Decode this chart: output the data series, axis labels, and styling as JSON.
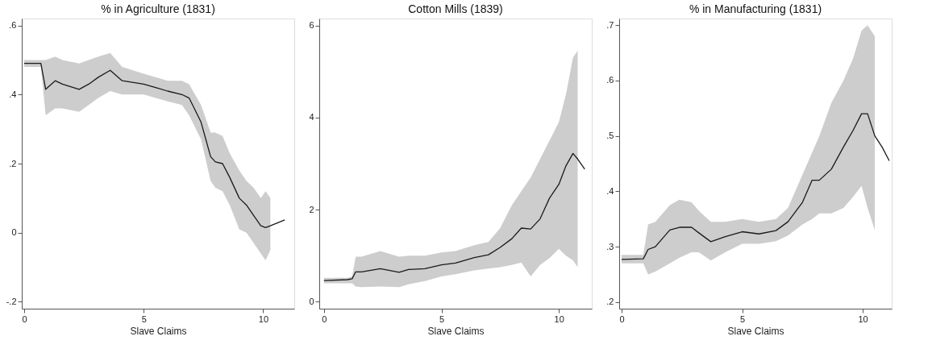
{
  "chart_data": [
    {
      "type": "line",
      "title": "% in Agriculture (1831)",
      "xlabel": "Slave Claims",
      "xlim": [
        -0.1,
        11.3
      ],
      "xticks": [
        0,
        5,
        10
      ],
      "ylim": [
        -0.22,
        0.62
      ],
      "yticks": [
        {
          "value": -0.2,
          "label": "-.2"
        },
        {
          "value": 0,
          "label": "0"
        },
        {
          "value": 0.2,
          "label": ".2"
        },
        {
          "value": 0.4,
          "label": ".4"
        },
        {
          "value": 0.6,
          "label": ".6"
        }
      ],
      "grid": false,
      "x": [
        0,
        0.7,
        0.9,
        1.3,
        1.6,
        2.3,
        2.7,
        3.1,
        3.6,
        4.1,
        5.0,
        5.5,
        6.0,
        6.6,
        6.9,
        7.4,
        7.8,
        8.0,
        8.3,
        8.6,
        9.0,
        9.3,
        9.6,
        9.9,
        10.1,
        10.3,
        10.9
      ],
      "series": [
        {
          "color": "#1a1a1a",
          "values": [
            0.49,
            0.49,
            0.415,
            0.44,
            0.43,
            0.415,
            0.43,
            0.45,
            0.47,
            0.44,
            0.43,
            0.42,
            0.41,
            0.4,
            0.39,
            0.32,
            0.22,
            0.205,
            0.2,
            0.16,
            0.1,
            0.08,
            0.05,
            0.02,
            0.015,
            0.02,
            0.037
          ],
          "lower": [
            0.48,
            0.48,
            0.34,
            0.36,
            0.36,
            0.35,
            0.37,
            0.39,
            0.41,
            0.4,
            0.4,
            0.39,
            0.38,
            0.37,
            0.34,
            0.27,
            0.15,
            0.13,
            0.12,
            0.08,
            0.01,
            0.0,
            -0.03,
            -0.06,
            -0.08,
            -0.05,
            null
          ],
          "upper": [
            0.5,
            0.5,
            0.5,
            0.51,
            0.5,
            0.49,
            0.5,
            0.51,
            0.52,
            0.48,
            0.46,
            0.45,
            0.44,
            0.44,
            0.43,
            0.37,
            0.29,
            0.29,
            0.28,
            0.23,
            0.18,
            0.15,
            0.13,
            0.1,
            0.12,
            0.1,
            null
          ]
        }
      ]
    },
    {
      "type": "line",
      "title": "Cotton Mills (1839)",
      "xlabel": "Slave Claims",
      "xlim": [
        -0.2,
        11.4
      ],
      "xticks": [
        0,
        5,
        10
      ],
      "ylim": [
        -0.15,
        6.15
      ],
      "yticks": [
        0,
        2,
        4,
        6
      ],
      "grid": false,
      "x": [
        0,
        1.0,
        1.2,
        1.35,
        1.6,
        2.4,
        3.2,
        3.6,
        4.3,
        5.0,
        5.6,
        6.4,
        7.0,
        7.5,
        8.0,
        8.4,
        8.8,
        9.2,
        9.6,
        10.0,
        10.3,
        10.6,
        10.8,
        11.1
      ],
      "series": [
        {
          "color": "#1a1a1a",
          "values": [
            0.46,
            0.48,
            0.5,
            0.65,
            0.65,
            0.72,
            0.64,
            0.7,
            0.72,
            0.8,
            0.84,
            0.96,
            1.02,
            1.18,
            1.37,
            1.6,
            1.58,
            1.8,
            2.25,
            2.55,
            2.95,
            3.22,
            3.1,
            2.88
          ],
          "lower": [
            0.4,
            0.4,
            0.4,
            0.33,
            0.32,
            0.33,
            0.32,
            0.38,
            0.45,
            0.55,
            0.6,
            0.68,
            0.72,
            0.75,
            0.8,
            0.85,
            0.55,
            0.8,
            0.95,
            1.15,
            1.0,
            0.9,
            0.75,
            null
          ],
          "upper": [
            0.52,
            0.52,
            0.55,
            0.98,
            0.98,
            1.1,
            0.98,
            1.0,
            1.0,
            1.07,
            1.1,
            1.23,
            1.3,
            1.6,
            2.1,
            2.4,
            2.7,
            3.1,
            3.5,
            3.9,
            4.5,
            5.3,
            5.45,
            null
          ]
        }
      ]
    },
    {
      "type": "line",
      "title": "% in Manufacturing (1831)",
      "xlabel": "Slave Claims",
      "xlim": [
        -0.1,
        11.2
      ],
      "xticks": [
        0,
        5,
        10
      ],
      "ylim": [
        0.188,
        0.712
      ],
      "yticks": [
        {
          "value": 0.2,
          "label": ".2"
        },
        {
          "value": 0.3,
          "label": ".3"
        },
        {
          "value": 0.4,
          "label": ".4"
        },
        {
          "value": 0.5,
          "label": ".5"
        },
        {
          "value": 0.6,
          "label": ".6"
        },
        {
          "value": 0.7,
          "label": ".7"
        }
      ],
      "grid": false,
      "x": [
        0,
        0.9,
        1.1,
        1.4,
        2.0,
        2.4,
        2.9,
        3.2,
        3.7,
        4.3,
        5.0,
        5.7,
        6.4,
        6.9,
        7.5,
        7.9,
        8.2,
        8.7,
        9.2,
        9.6,
        9.95,
        10.2,
        10.5,
        10.8,
        11.1
      ],
      "series": [
        {
          "color": "#1a1a1a",
          "values": [
            0.277,
            0.278,
            0.295,
            0.3,
            0.33,
            0.335,
            0.335,
            0.325,
            0.309,
            0.318,
            0.327,
            0.323,
            0.329,
            0.345,
            0.38,
            0.42,
            0.42,
            0.44,
            0.48,
            0.51,
            0.54,
            0.54,
            0.5,
            0.48,
            0.455
          ],
          "lower": [
            0.27,
            0.27,
            0.25,
            0.255,
            0.27,
            0.28,
            0.29,
            0.29,
            0.275,
            0.29,
            0.305,
            0.305,
            0.31,
            0.32,
            0.34,
            0.35,
            0.36,
            0.36,
            0.37,
            0.39,
            0.41,
            0.37,
            0.33,
            null,
            null
          ],
          "upper": [
            0.285,
            0.285,
            0.34,
            0.345,
            0.375,
            0.385,
            0.38,
            0.365,
            0.345,
            0.345,
            0.35,
            0.345,
            0.35,
            0.37,
            0.43,
            0.47,
            0.5,
            0.56,
            0.6,
            0.64,
            0.69,
            0.7,
            0.68,
            null,
            null
          ]
        }
      ]
    }
  ]
}
